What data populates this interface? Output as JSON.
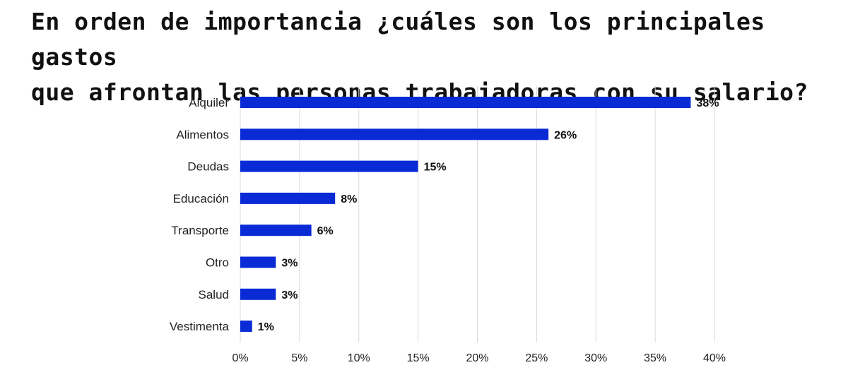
{
  "chart_data": {
    "type": "bar",
    "orientation": "horizontal",
    "title_line1": "En orden de importancia ¿cuáles son los principales gastos",
    "title_line2": "que afrontan las personas trabajadoras con su salario?",
    "categories": [
      "Alquiler",
      "Alimentos",
      "Deudas",
      "Educación",
      "Transporte",
      "Otro",
      "Salud",
      "Vestimenta"
    ],
    "values": [
      38,
      26,
      15,
      8,
      6,
      3,
      3,
      1
    ],
    "value_labels": [
      "38%",
      "26%",
      "15%",
      "8%",
      "6%",
      "3%",
      "3%",
      "1%"
    ],
    "xlim": [
      0,
      40
    ],
    "x_ticks": [
      0,
      5,
      10,
      15,
      20,
      25,
      30,
      35,
      40
    ],
    "x_tick_labels": [
      "0%",
      "5%",
      "10%",
      "15%",
      "20%",
      "25%",
      "30%",
      "35%",
      "40%"
    ],
    "grid": true,
    "bar_color": "#0a2ad6"
  }
}
